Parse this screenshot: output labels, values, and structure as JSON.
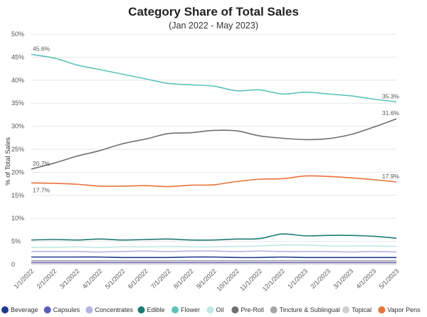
{
  "chart_data": {
    "type": "line",
    "title": "Category Share of Total Sales",
    "subtitle": "(Jan 2022 - May 2023)",
    "xlabel": "",
    "ylabel": "% of Total Sales",
    "ylim": [
      0,
      50
    ],
    "y_ticks": [
      "0",
      "5%",
      "10%",
      "15%",
      "20%",
      "25%",
      "30%",
      "35%",
      "40%",
      "45%",
      "50%"
    ],
    "grid": true,
    "legend_position": "bottom",
    "categories": [
      "1/1/2022",
      "2/1/2022",
      "3/1/2022",
      "4/1/2022",
      "5/1/2022",
      "6/1/2022",
      "7/1/2022",
      "8/1/2022",
      "9/1/2022",
      "10/1/2022",
      "11/1/2022",
      "12/1/2022",
      "1/1/2023",
      "2/1/2023",
      "3/1/2023",
      "4/1/2023",
      "5/1/2023"
    ],
    "series": [
      {
        "name": "Beverage",
        "color": "#1f3a8a",
        "values": [
          1.6,
          1.6,
          1.6,
          1.6,
          1.5,
          1.5,
          1.5,
          1.6,
          1.6,
          1.5,
          1.5,
          1.6,
          1.5,
          1.5,
          1.5,
          1.5,
          1.5
        ]
      },
      {
        "name": "Capsules",
        "color": "#5b5bb8",
        "values": [
          0.4,
          0.4,
          0.4,
          0.4,
          0.4,
          0.4,
          0.4,
          0.4,
          0.4,
          0.4,
          0.4,
          0.4,
          0.4,
          0.4,
          0.4,
          0.4,
          0.4
        ]
      },
      {
        "name": "Concentrates",
        "color": "#b3b3e6",
        "values": [
          2.8,
          2.8,
          2.8,
          2.7,
          2.8,
          2.9,
          2.8,
          2.9,
          2.9,
          2.8,
          2.9,
          2.8,
          2.8,
          2.8,
          2.7,
          2.8,
          2.7
        ]
      },
      {
        "name": "Edible",
        "color": "#1e7b75",
        "values": [
          5.3,
          5.4,
          5.3,
          5.5,
          5.3,
          5.4,
          5.5,
          5.3,
          5.3,
          5.5,
          5.6,
          6.6,
          6.2,
          6.3,
          6.3,
          6.1,
          5.7
        ]
      },
      {
        "name": "Flower",
        "color": "#5cc3bb",
        "values": [
          45.6,
          44.8,
          43.3,
          42.3,
          41.3,
          40.3,
          39.3,
          39.0,
          38.7,
          37.7,
          37.9,
          37.0,
          37.4,
          37.0,
          36.6,
          35.9,
          35.3
        ]
      },
      {
        "name": "Oil",
        "color": "#bfe8e4",
        "values": [
          3.7,
          3.7,
          3.8,
          3.7,
          3.8,
          3.8,
          3.9,
          3.8,
          3.8,
          3.9,
          4.0,
          4.2,
          4.2,
          4.0,
          4.0,
          4.0,
          3.9
        ]
      },
      {
        "name": "Pre-Roll",
        "color": "#707070",
        "values": [
          20.7,
          22.0,
          23.5,
          24.7,
          26.2,
          27.2,
          28.4,
          28.6,
          29.1,
          29.0,
          27.9,
          27.4,
          27.1,
          27.3,
          28.2,
          29.8,
          31.6
        ]
      },
      {
        "name": "Tincture & Sublingual",
        "color": "#a6a6a6",
        "values": [
          0.8,
          0.8,
          0.8,
          0.8,
          0.8,
          0.8,
          0.8,
          0.8,
          0.8,
          0.8,
          0.8,
          0.8,
          0.8,
          0.8,
          0.8,
          0.8,
          0.8
        ]
      },
      {
        "name": "Topical",
        "color": "#cfcfcf",
        "values": [
          0.2,
          0.2,
          0.2,
          0.2,
          0.2,
          0.2,
          0.2,
          0.2,
          0.2,
          0.2,
          0.2,
          0.2,
          0.2,
          0.2,
          0.2,
          0.2,
          0.2
        ]
      },
      {
        "name": "Vapor Pens",
        "color": "#e8723a",
        "values": [
          17.7,
          17.6,
          17.4,
          17.0,
          17.0,
          17.1,
          16.9,
          17.2,
          17.3,
          18.0,
          18.5,
          18.6,
          19.2,
          19.1,
          18.8,
          18.4,
          17.9
        ]
      }
    ],
    "annotations": [
      {
        "series": "Flower",
        "point": 0,
        "text": "45.6%"
      },
      {
        "series": "Flower",
        "point": 16,
        "text": "35.3%"
      },
      {
        "series": "Pre-Roll",
        "point": 0,
        "text": "20.7%"
      },
      {
        "series": "Pre-Roll",
        "point": 16,
        "text": "31.6%"
      },
      {
        "series": "Vapor Pens",
        "point": 0,
        "text": "17.7%"
      },
      {
        "series": "Vapor Pens",
        "point": 16,
        "text": "17.9%"
      }
    ]
  }
}
